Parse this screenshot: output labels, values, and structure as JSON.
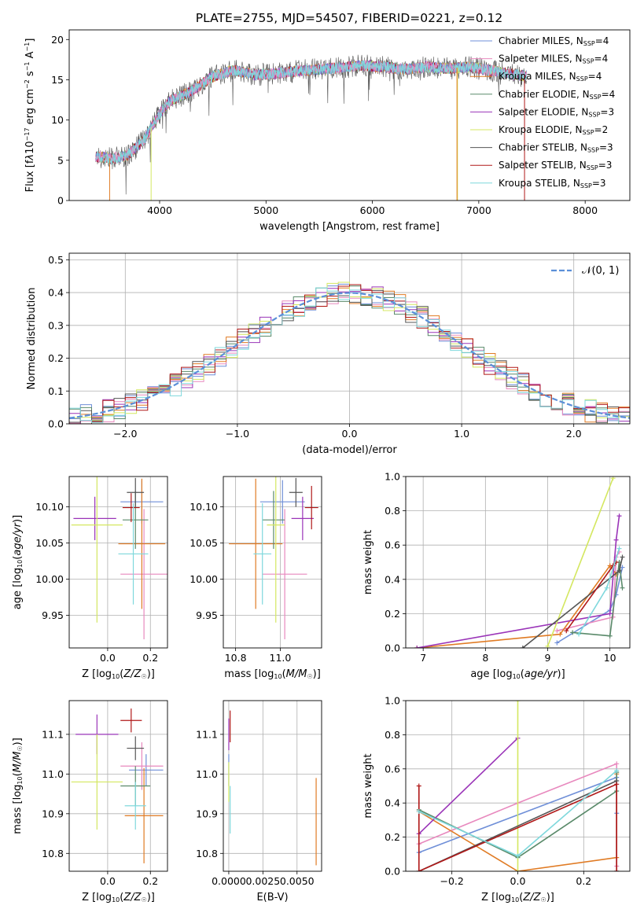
{
  "figure_title": "PLATE=2755, MJD=54507, FIBERID=0221, z=0.12",
  "colors": {
    "Chabrier MILES": "#6f8fd8",
    "Salpeter MILES": "#e889be",
    "Kroupa MILES": "#e07b24",
    "Chabrier ELODIE": "#5a8a6a",
    "Salpeter ELODIE": "#9a34b8",
    "Kroupa ELODIE": "#d4e760",
    "Chabrier STELIB": "#555555",
    "Salpeter STELIB": "#b01818",
    "Kroupa STELIB": "#7fd8dc"
  },
  "chart_data": [
    {
      "id": "spectrum",
      "type": "line",
      "title": "PLATE=2755, MJD=54507, FIBERID=0221, z=0.12",
      "xlabel": "wavelength [Angstrom, rest frame]",
      "ylabel_html": "Flux [f<tspan font-style='italic'>λ</tspan>10<tspan dy='-5' font-size='8'>−17</tspan><tspan dy='5'> erg cm</tspan><tspan dy='-5' font-size='8'>−2</tspan><tspan dy='5'> s</tspan><tspan dy='-5' font-size='8'>−1</tspan><tspan dy='5'> A</tspan><tspan dy='-5' font-size='8'>−1</tspan><tspan dy='5'>]</tspan>",
      "xlim": [
        3150,
        8420
      ],
      "ylim": [
        0,
        21.2
      ],
      "xticks": [
        4000,
        5000,
        6000,
        7000,
        8000
      ],
      "yticks": [
        0,
        5,
        10,
        15,
        20
      ],
      "legend": [
        {
          "name": "Chabrier MILES",
          "label": "Chabrier MILES, N<tspan font-size='8' dy='2'>SSP</tspan><tspan dy='-2'>=4</tspan>"
        },
        {
          "name": "Salpeter MILES",
          "label": "Salpeter MILES, N<tspan font-size='8' dy='2'>SSP</tspan><tspan dy='-2'>=4</tspan>"
        },
        {
          "name": "Kroupa MILES",
          "label": "Kroupa MILES, N<tspan font-size='8' dy='2'>SSP</tspan><tspan dy='-2'>=4</tspan>"
        },
        {
          "name": "Chabrier ELODIE",
          "label": "Chabrier ELODIE, N<tspan font-size='8' dy='2'>SSP</tspan><tspan dy='-2'>=4</tspan>"
        },
        {
          "name": "Salpeter ELODIE",
          "label": "Salpeter ELODIE, N<tspan font-size='8' dy='2'>SSP</tspan><tspan dy='-2'>=3</tspan>"
        },
        {
          "name": "Kroupa ELODIE",
          "label": "Kroupa ELODIE, N<tspan font-size='8' dy='2'>SSP</tspan><tspan dy='-2'>=2</tspan>"
        },
        {
          "name": "Chabrier STELIB",
          "label": "Chabrier STELIB, N<tspan font-size='8' dy='2'>SSP</tspan><tspan dy='-2'>=3</tspan>"
        },
        {
          "name": "Salpeter STELIB",
          "label": "Salpeter STELIB, N<tspan font-size='8' dy='2'>SSP</tspan><tspan dy='-2'>=3</tspan>"
        },
        {
          "name": "Kroupa STELIB",
          "label": "Kroupa STELIB, N<tspan font-size='8' dy='2'>SSP</tspan><tspan dy='-2'>=3</tspan>"
        }
      ],
      "legend_position": "top-right",
      "grid": false,
      "continuum": {
        "x": [
          3400,
          3550,
          3700,
          3850,
          4000,
          4100,
          4300,
          4500,
          4700,
          4900,
          5100,
          5300,
          5500,
          5700,
          5900,
          6100,
          6300,
          6500,
          6700,
          6900,
          7100,
          7300,
          7450
        ],
        "y": [
          5.5,
          5.2,
          5.6,
          7.5,
          10.8,
          12.4,
          13.6,
          15.4,
          16.2,
          15.6,
          15.8,
          16.1,
          16.3,
          16.5,
          16.8,
          16.6,
          16.3,
          16.6,
          16.4,
          16.6,
          16.2,
          15.7,
          15.5
        ]
      }
    },
    {
      "id": "residuals",
      "type": "line",
      "xlabel": "(data-model)/error",
      "ylabel": "Normed distribution",
      "xlim": [
        -2.5,
        2.5
      ],
      "ylim": [
        0,
        0.52
      ],
      "xticks": [
        -2,
        -1,
        0,
        1,
        2
      ],
      "yticks": [
        0.0,
        0.1,
        0.2,
        0.3,
        0.4,
        0.5
      ],
      "grid": true,
      "legend": [
        {
          "name": "N(0,1)",
          "label": "𝒩(0, 1)"
        }
      ],
      "legend_position": "top-right",
      "bin_width": 0.1,
      "gaussian": {
        "mean": 0,
        "sigma": 1
      }
    },
    {
      "id": "age-vs-Z",
      "type": "scatter",
      "xlabel": "Z [log<tspan font-size='8' dy='2'>10</tspan><tspan dy='-2'>(</tspan><tspan font-style='italic'>Z/Z</tspan><tspan font-size='8' dy='2'>☉</tspan><tspan dy='-2'>)]</tspan>",
      "ylabel": "age  [log<tspan font-size='8' dy='2'>10</tspan><tspan dy='-2'>(</tspan><tspan font-style='italic'>age/yr</tspan>)]",
      "xlim": [
        -0.18,
        0.28
      ],
      "ylim": [
        9.905,
        10.142
      ],
      "xticks": [
        0.0,
        0.2
      ],
      "yticks": [
        9.95,
        10.0,
        10.05,
        10.1
      ],
      "grid": true,
      "points": [
        {
          "name": "Chabrier MILES",
          "x": 0.16,
          "y": 10.107,
          "xerr": 0.1,
          "yerr": 0.03
        },
        {
          "name": "Salpeter MILES",
          "x": 0.17,
          "y": 10.007,
          "xerr": 0.11,
          "yerr": 0.09
        },
        {
          "name": "Kroupa MILES",
          "x": 0.16,
          "y": 10.049,
          "xerr": 0.11,
          "yerr": 0.09
        },
        {
          "name": "Chabrier ELODIE",
          "x": 0.13,
          "y": 10.082,
          "xerr": 0.06,
          "yerr": 0.04
        },
        {
          "name": "Salpeter ELODIE",
          "x": -0.06,
          "y": 10.084,
          "xerr": 0.1,
          "yerr": 0.03
        },
        {
          "name": "Kroupa ELODIE",
          "x": -0.05,
          "y": 10.075,
          "xerr": 0.12,
          "yerr": 0.135
        },
        {
          "name": "Chabrier STELIB",
          "x": 0.13,
          "y": 10.12,
          "xerr": 0.04,
          "yerr": 0.02
        },
        {
          "name": "Salpeter STELIB",
          "x": 0.11,
          "y": 10.099,
          "xerr": 0.04,
          "yerr": 0.02
        },
        {
          "name": "Kroupa STELIB",
          "x": 0.12,
          "y": 10.035,
          "xerr": 0.07,
          "yerr": 0.07
        }
      ]
    },
    {
      "id": "age-vs-mass",
      "type": "scatter",
      "xlabel": "mass [log<tspan font-size='8' dy='2'>10</tspan><tspan dy='-2'>(</tspan><tspan font-style='italic'>M/M</tspan><tspan font-size='8' dy='2'>☉</tspan><tspan dy='-2'>)]</tspan>",
      "xlim": [
        10.745,
        11.185
      ],
      "ylim": [
        9.905,
        10.142
      ],
      "xticks": [
        10.8,
        11.0
      ],
      "yticks": [
        9.95,
        10.0,
        10.05,
        10.1
      ],
      "grid": true,
      "points": [
        {
          "name": "Chabrier MILES",
          "x": 11.01,
          "y": 10.107,
          "xerr": 0.1,
          "yerr": 0.03
        },
        {
          "name": "Salpeter MILES",
          "x": 11.02,
          "y": 10.007,
          "xerr": 0.1,
          "yerr": 0.09
        },
        {
          "name": "Kroupa MILES",
          "x": 10.89,
          "y": 10.049,
          "xerr": 0.12,
          "yerr": 0.09
        },
        {
          "name": "Chabrier ELODIE",
          "x": 10.97,
          "y": 10.082,
          "xerr": 0.05,
          "yerr": 0.04
        },
        {
          "name": "Salpeter ELODIE",
          "x": 11.1,
          "y": 10.084,
          "xerr": 0.05,
          "yerr": 0.03
        },
        {
          "name": "Kroupa ELODIE",
          "x": 10.98,
          "y": 10.075,
          "xerr": 0.04,
          "yerr": 0.135
        },
        {
          "name": "Chabrier STELIB",
          "x": 11.07,
          "y": 10.12,
          "xerr": 0.03,
          "yerr": 0.02
        },
        {
          "name": "Salpeter STELIB",
          "x": 11.14,
          "y": 10.099,
          "xerr": 0.03,
          "yerr": 0.03
        },
        {
          "name": "Kroupa STELIB",
          "x": 10.92,
          "y": 10.035,
          "xerr": 0.04,
          "yerr": 0.07
        }
      ]
    },
    {
      "id": "mass-weight-vs-age",
      "type": "line",
      "xlabel": "age  [log<tspan font-size='8' dy='2'>10</tspan><tspan dy='-2'>(</tspan><tspan font-style='italic'>age/yr</tspan>)]",
      "ylabel": "mass weight",
      "xlim": [
        6.72,
        10.32
      ],
      "ylim": [
        0,
        1.0
      ],
      "xticks": [
        7,
        8,
        9,
        10
      ],
      "yticks": [
        0.0,
        0.2,
        0.4,
        0.6,
        0.8,
        1.0
      ],
      "grid": true,
      "series": [
        {
          "name": "Chabrier MILES",
          "x": [
            9.15,
            10.0,
            10.1,
            10.2
          ],
          "y": [
            0.03,
            0.22,
            0.31,
            0.47
          ]
        },
        {
          "name": "Salpeter MILES",
          "x": [
            9.15,
            10.05,
            10.1,
            10.15
          ],
          "y": [
            0.1,
            0.18,
            0.53,
            0.56
          ]
        },
        {
          "name": "Kroupa MILES",
          "x": [
            6.9,
            9.2,
            10.0,
            10.1
          ],
          "y": [
            0.0,
            0.08,
            0.48,
            0.43
          ]
        },
        {
          "name": "Chabrier ELODIE",
          "x": [
            9.4,
            10.0,
            10.15,
            10.2
          ],
          "y": [
            0.09,
            0.07,
            0.5,
            0.35
          ]
        },
        {
          "name": "Salpeter ELODIE",
          "x": [
            6.9,
            10.0,
            10.1,
            10.15
          ],
          "y": [
            0.0,
            0.2,
            0.63,
            0.77
          ]
        },
        {
          "name": "Kroupa ELODIE",
          "x": [
            9.0,
            10.05
          ],
          "y": [
            0.01,
            0.99
          ]
        },
        {
          "name": "Chabrier STELIB",
          "x": [
            8.6,
            10.15,
            10.2
          ],
          "y": [
            0.0,
            0.45,
            0.53
          ]
        },
        {
          "name": "Salpeter STELIB",
          "x": [
            9.3,
            10.05,
            10.1
          ],
          "y": [
            0.1,
            0.48,
            0.5
          ]
        },
        {
          "name": "Kroupa STELIB",
          "x": [
            9.5,
            9.95,
            10.15
          ],
          "y": [
            0.08,
            0.35,
            0.58
          ]
        }
      ]
    },
    {
      "id": "mass-vs-Z",
      "type": "scatter",
      "xlabel": "Z [log<tspan font-size='8' dy='2'>10</tspan><tspan dy='-2'>(</tspan><tspan font-style='italic'>Z/Z</tspan><tspan font-size='8' dy='2'>☉</tspan><tspan dy='-2'>)]</tspan>",
      "ylabel": "mass [log<tspan font-size='8' dy='2'>10</tspan><tspan dy='-2'>(</tspan><tspan font-style='italic'>M/M</tspan><tspan font-size='8' dy='2'>☉</tspan><tspan dy='-2'>)]</tspan>",
      "xlim": [
        -0.18,
        0.28
      ],
      "ylim": [
        10.755,
        11.185
      ],
      "xticks": [
        0.0,
        0.2
      ],
      "yticks": [
        10.8,
        10.9,
        11.0,
        11.1
      ],
      "grid": true,
      "points": [
        {
          "name": "Chabrier MILES",
          "x": 0.18,
          "y": 11.01,
          "xerr": 0.08,
          "yerr": 0.04
        },
        {
          "name": "Salpeter MILES",
          "x": 0.16,
          "y": 11.02,
          "xerr": 0.1,
          "yerr": 0.06
        },
        {
          "name": "Kroupa MILES",
          "x": 0.17,
          "y": 10.895,
          "xerr": 0.09,
          "yerr": 0.12
        },
        {
          "name": "Chabrier ELODIE",
          "x": 0.13,
          "y": 10.97,
          "xerr": 0.07,
          "yerr": 0.05
        },
        {
          "name": "Salpeter ELODIE",
          "x": -0.05,
          "y": 11.1,
          "xerr": 0.1,
          "yerr": 0.05
        },
        {
          "name": "Kroupa ELODIE",
          "x": -0.05,
          "y": 10.98,
          "xerr": 0.12,
          "yerr": 0.12
        },
        {
          "name": "Chabrier STELIB",
          "x": 0.13,
          "y": 11.065,
          "xerr": 0.04,
          "yerr": 0.03
        },
        {
          "name": "Salpeter STELIB",
          "x": 0.11,
          "y": 11.135,
          "xerr": 0.05,
          "yerr": 0.03
        },
        {
          "name": "Kroupa STELIB",
          "x": 0.13,
          "y": 10.92,
          "xerr": 0.05,
          "yerr": 0.06
        }
      ]
    },
    {
      "id": "mass-vs-ebv",
      "type": "scatter",
      "xlabel": "E(B-V)",
      "xlim": [
        -0.0004,
        0.0068
      ],
      "ylim": [
        10.755,
        11.185
      ],
      "xticks": [
        0.0,
        0.0025,
        0.005
      ],
      "xtick_labels": [
        "0.0000",
        "0.0025",
        "0.0050"
      ],
      "yticks": [
        10.8,
        10.9,
        11.0,
        11.1
      ],
      "grid": true,
      "points": [
        {
          "name": "Chabrier MILES",
          "x": 0.0,
          "y": 11.01,
          "xerr": 0,
          "yerr": 0.04
        },
        {
          "name": "Kroupa MILES",
          "x": 0.0064,
          "y": 10.88,
          "xerr": 0,
          "yerr": 0.11
        },
        {
          "name": "Salpeter ELODIE",
          "x": 0.0,
          "y": 11.1,
          "xerr": 0,
          "yerr": 0.04
        },
        {
          "name": "Kroupa ELODIE",
          "x": 0.0,
          "y": 10.98,
          "xerr": 0,
          "yerr": 0.05
        },
        {
          "name": "Salpeter STELIB",
          "x": 0.0001,
          "y": 11.12,
          "xerr": 0,
          "yerr": 0.04
        },
        {
          "name": "Kroupa STELIB",
          "x": 0.0001,
          "y": 10.91,
          "xerr": 0,
          "yerr": 0.06
        }
      ]
    },
    {
      "id": "mass-weight-vs-Z",
      "type": "line",
      "xlabel": "Z [log<tspan font-size='8' dy='2'>10</tspan><tspan dy='-2'>(</tspan><tspan font-style='italic'>Z/Z</tspan><tspan font-size='8' dy='2'>☉</tspan><tspan dy='-2'>)]</tspan>",
      "ylabel": "mass weight",
      "xlim": [
        -0.34,
        0.34
      ],
      "ylim": [
        0,
        1.0
      ],
      "xticks": [
        -0.2,
        0.0,
        0.2
      ],
      "yticks": [
        0.0,
        0.2,
        0.4,
        0.6,
        0.8,
        1.0
      ],
      "grid": true,
      "series": [
        {
          "name": "Chabrier MILES",
          "x": [
            -0.3,
            0.3,
            0.3
          ],
          "y": [
            0.11,
            0.55,
            0.34
          ]
        },
        {
          "name": "Salpeter MILES",
          "x": [
            -0.3,
            0.0,
            0.3,
            0.3
          ],
          "y": [
            0.16,
            0.4,
            0.63,
            0.03
          ]
        },
        {
          "name": "Kroupa MILES",
          "x": [
            -0.3,
            0.0,
            0.3,
            0.3
          ],
          "y": [
            0.35,
            0.0,
            0.08,
            0.57
          ]
        },
        {
          "name": "Chabrier ELODIE",
          "x": [
            -0.3,
            0.0,
            0.3,
            0.3
          ],
          "y": [
            0.36,
            0.08,
            0.47,
            0.58
          ]
        },
        {
          "name": "Salpeter ELODIE",
          "x": [
            -0.3,
            0.0
          ],
          "y": [
            0.22,
            0.78
          ]
        },
        {
          "name": "Kroupa ELODIE",
          "x": [
            0.0,
            0.0
          ],
          "y": [
            0.0,
            1.0
          ]
        },
        {
          "name": "Chabrier STELIB",
          "x": [
            -0.3,
            0.3,
            0.3
          ],
          "y": [
            0.0,
            0.53,
            0.0
          ]
        },
        {
          "name": "Salpeter STELIB",
          "x": [
            -0.3,
            -0.3,
            0.3,
            0.3
          ],
          "y": [
            0.5,
            0.0,
            0.51,
            0.0
          ]
        },
        {
          "name": "Kroupa STELIB",
          "x": [
            -0.3,
            0.0,
            0.3
          ],
          "y": [
            0.35,
            0.09,
            0.59
          ]
        }
      ]
    }
  ]
}
